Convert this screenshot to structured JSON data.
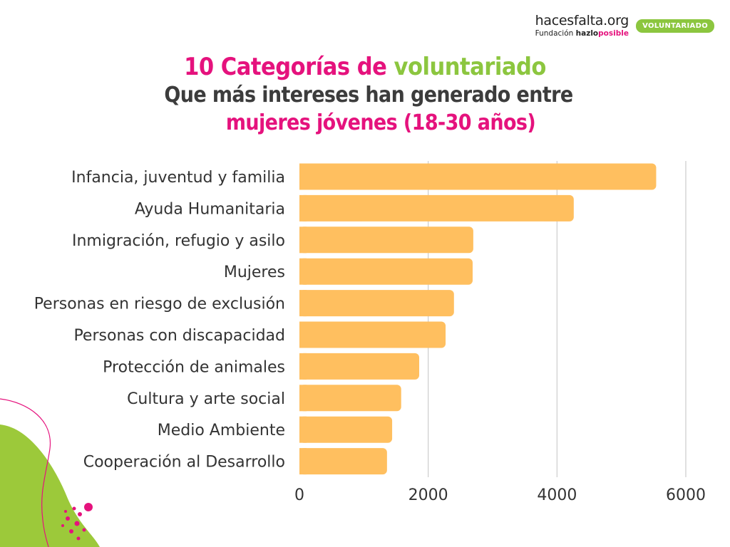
{
  "brand": {
    "logo_main": "hacesfalta.org",
    "logo_sub_prefix": "Fundación",
    "logo_sub_brand_a": "hazlo",
    "logo_sub_brand_b": "posible",
    "badge": "VOLUNTARIADO"
  },
  "titles": {
    "title_part1": "10 Categorías de",
    "title_part2": "voluntariado",
    "subtitle_line1": "Que más intereses han generado entre",
    "subtitle_line2": "mujeres jóvenes (18-30 años)"
  },
  "colors": {
    "bar": "#ffbf5f",
    "grid": "#cccccc",
    "accent_pink": "#e5127d",
    "accent_green": "#8cc63f"
  },
  "chart_data": {
    "type": "bar",
    "orientation": "horizontal",
    "categories": [
      "Infancia, juventud y familia",
      "Ayuda Humanitaria",
      "Inmigración, refugio y asilo",
      "Mujeres",
      "Personas en riesgo de exclusión",
      "Personas con discapacidad",
      "Protección de animales",
      "Cultura y arte social",
      "Medio Ambiente",
      "Cooperación al Desarrollo"
    ],
    "values": [
      5540,
      4260,
      2700,
      2690,
      2400,
      2270,
      1860,
      1580,
      1440,
      1360
    ],
    "xlim": [
      0,
      6000
    ],
    "xticks": [
      "0",
      "2000",
      "4000",
      "6000"
    ],
    "xtick_values": [
      0,
      2000,
      4000,
      6000
    ],
    "grid": true,
    "legend": "none"
  }
}
